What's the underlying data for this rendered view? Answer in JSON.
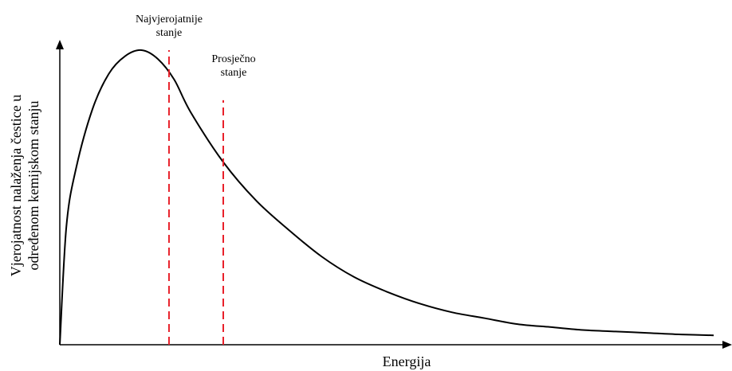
{
  "chart_data": {
    "type": "line",
    "xlabel": "Energija",
    "ylabel_lines": [
      "Vjerojatnost nalaženja čestice u",
      "određenom kemijskom stanju"
    ],
    "ticks": "none",
    "grid": false,
    "xlim": [
      0,
      10
    ],
    "ylim": [
      0,
      1.0
    ],
    "x": [
      0,
      0.1,
      0.25,
      0.5,
      0.75,
      1.0,
      1.25,
      1.5,
      1.75,
      2.0,
      2.5,
      3.0,
      3.5,
      4.0,
      4.5,
      5.0,
      5.5,
      6.0,
      6.5,
      7.0,
      7.5,
      8.0,
      8.5,
      9.0,
      9.5,
      10.0
    ],
    "y": [
      0,
      0.4,
      0.6,
      0.8,
      0.92,
      0.98,
      1.0,
      0.97,
      0.9,
      0.79,
      0.62,
      0.49,
      0.39,
      0.3,
      0.23,
      0.18,
      0.14,
      0.11,
      0.09,
      0.07,
      0.06,
      0.05,
      0.045,
      0.04,
      0.035,
      0.032
    ],
    "annotations": [
      {
        "lines": [
          "Najvjerojatnije",
          "stanje"
        ],
        "x": 1.67,
        "y": 1.0,
        "line_color": "#e8202a",
        "line_style": "dashed"
      },
      {
        "lines": [
          "Prosječno",
          "stanje"
        ],
        "x": 2.5,
        "y": 0.83,
        "line_color": "#e8202a",
        "line_style": "dashed"
      }
    ],
    "colors": {
      "curve": "#000000",
      "axes": "#000000",
      "markers": "#e8202a"
    }
  }
}
